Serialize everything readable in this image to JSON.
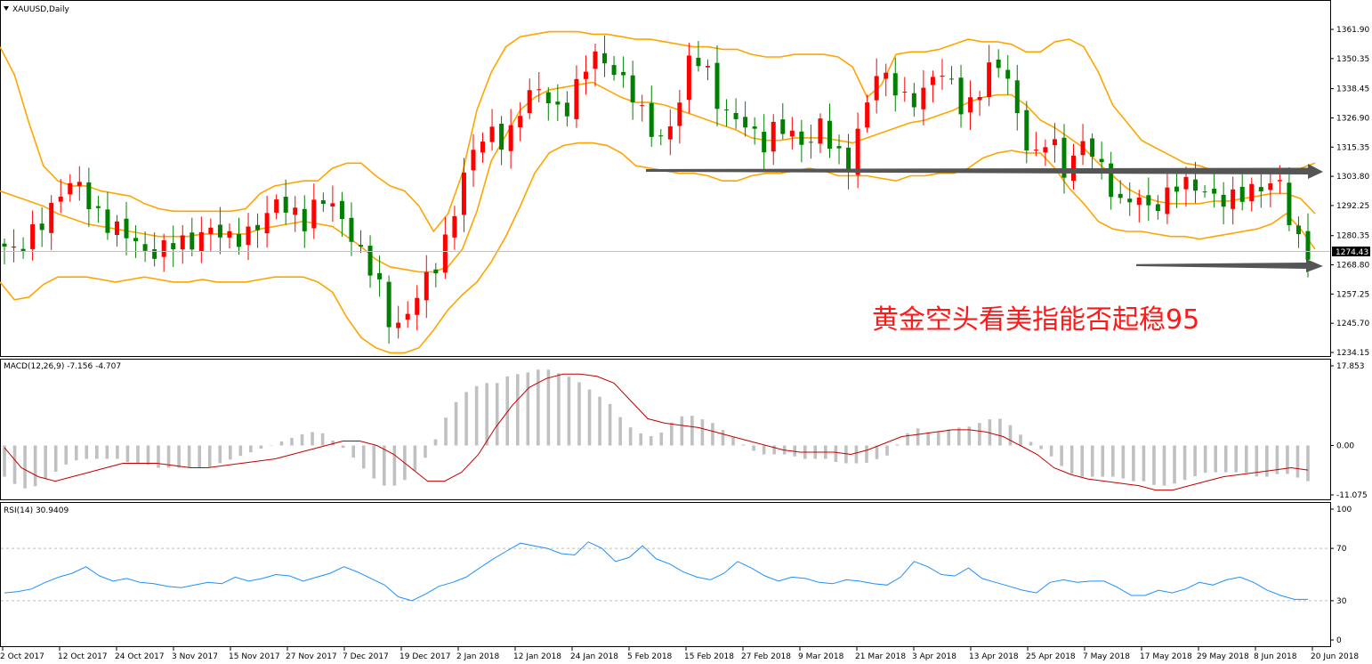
{
  "window": {
    "symbol_label": "XAUUSD,Daily"
  },
  "annotation": {
    "text": "黄金空头看美指能否起稳95"
  },
  "colors": {
    "bull_candle": "#ff0000",
    "bear_candle": "#008000",
    "bollinger": "#ffa500",
    "macd_hist": "#c0c0c0",
    "macd_signal": "#c00000",
    "rsi_line": "#1e90ff",
    "arrow": "#555555",
    "price_badge": "#000000"
  },
  "icons": {
    "menu": "triangle-down-icon"
  },
  "chart_data": [
    {
      "type": "candlestick",
      "panel": "price",
      "title": "XAUUSD,Daily",
      "y_ticks": [
        "1361.90",
        "1350.35",
        "1338.45",
        "1326.90",
        "1315.35",
        "1303.80",
        "1292.25",
        "1280.35",
        "1268.80",
        "1257.25",
        "1245.70",
        "1234.15"
      ],
      "y_range": [
        1234.15,
        1361.9
      ],
      "current_price": "1274.43",
      "x_ticks": [
        "2 Oct 2017",
        "12 Oct 2017",
        "24 Oct 2017",
        "3 Nov 2017",
        "15 Nov 2017",
        "27 Nov 2017",
        "7 Dec 2017",
        "19 Dec 2017",
        "2 Jan 2018",
        "12 Jan 2018",
        "24 Jan 2018",
        "5 Feb 2018",
        "15 Feb 2018",
        "27 Feb 2018",
        "9 Mar 2018",
        "21 Mar 2018",
        "3 Apr 2018",
        "13 Apr 2018",
        "25 Apr 2018",
        "7 May 2018",
        "17 May 2018",
        "29 May 2018",
        "8 Jun 2018",
        "20 Jun 2018"
      ],
      "close_path": [
        1276,
        1274,
        1282,
        1288,
        1298,
        1303,
        1292,
        1285,
        1283,
        1279,
        1272,
        1275,
        1279,
        1276,
        1283,
        1282,
        1278,
        1281,
        1286,
        1294,
        1290,
        1285,
        1296,
        1292,
        1282,
        1272,
        1264,
        1243,
        1247,
        1260,
        1267,
        1281,
        1303,
        1318,
        1321,
        1316,
        1330,
        1340,
        1334,
        1327,
        1340,
        1353,
        1348,
        1343,
        1335,
        1323,
        1317,
        1331,
        1354,
        1346,
        1329,
        1327,
        1323,
        1316,
        1325,
        1320,
        1315,
        1325,
        1313,
        1308,
        1330,
        1346,
        1340,
        1333,
        1335,
        1346,
        1342,
        1328,
        1337,
        1350,
        1344,
        1320,
        1311,
        1322,
        1304,
        1317,
        1314,
        1301,
        1292,
        1297,
        1290,
        1295,
        1302,
        1300,
        1297,
        1294,
        1296,
        1298,
        1300,
        1302,
        1280,
        1274
      ],
      "bollinger_upper_path": [
        1355,
        1344,
        1325,
        1308,
        1302,
        1300,
        1300,
        1298,
        1297,
        1296,
        1293,
        1291,
        1290,
        1290,
        1290,
        1290,
        1290,
        1291,
        1297,
        1300,
        1301,
        1302,
        1302,
        1307,
        1309,
        1309,
        1304,
        1300,
        1298,
        1292,
        1282,
        1289,
        1305,
        1330,
        1345,
        1355,
        1359,
        1360,
        1361,
        1361,
        1361,
        1360,
        1360,
        1359,
        1358,
        1358,
        1357,
        1356,
        1355,
        1355,
        1354,
        1354,
        1352,
        1351,
        1351,
        1352,
        1352,
        1352,
        1351,
        1347,
        1335,
        1340,
        1352,
        1353,
        1353,
        1354,
        1356,
        1358,
        1357,
        1357,
        1356,
        1353,
        1353,
        1357,
        1358,
        1355,
        1345,
        1332,
        1325,
        1318,
        1315,
        1312,
        1309,
        1308,
        1306,
        1306,
        1305,
        1305,
        1305,
        1306,
        1307,
        1309
      ],
      "bollinger_middle_path": [
        1298,
        1296,
        1294,
        1292,
        1289,
        1287,
        1285,
        1284,
        1283,
        1282,
        1281,
        1280,
        1280,
        1280,
        1281,
        1281,
        1281,
        1281,
        1283,
        1284,
        1285,
        1286,
        1285,
        1284,
        1280,
        1276,
        1271,
        1268,
        1267,
        1266,
        1266,
        1268,
        1275,
        1290,
        1310,
        1320,
        1330,
        1335,
        1338,
        1339,
        1340,
        1341,
        1338,
        1335,
        1333,
        1333,
        1332,
        1330,
        1328,
        1326,
        1324,
        1322,
        1319,
        1318,
        1318,
        1319,
        1319,
        1319,
        1318,
        1317,
        1319,
        1321,
        1323,
        1325,
        1326,
        1328,
        1330,
        1333,
        1335,
        1336,
        1336,
        1332,
        1326,
        1323,
        1319,
        1315,
        1309,
        1304,
        1299,
        1296,
        1294,
        1293,
        1293,
        1293,
        1294,
        1294,
        1295,
        1296,
        1297,
        1297,
        1295,
        1289
      ],
      "bollinger_lower_path": [
        1262,
        1255,
        1256,
        1261,
        1264,
        1264,
        1264,
        1263,
        1262,
        1263,
        1264,
        1263,
        1262,
        1262,
        1263,
        1262,
        1262,
        1262,
        1263,
        1264,
        1264,
        1264,
        1262,
        1258,
        1248,
        1240,
        1236,
        1234,
        1234,
        1236,
        1243,
        1251,
        1257,
        1262,
        1270,
        1280,
        1292,
        1305,
        1313,
        1316,
        1317,
        1317,
        1316,
        1313,
        1308,
        1307,
        1306,
        1305,
        1305,
        1304,
        1302,
        1302,
        1304,
        1305,
        1305,
        1306,
        1307,
        1306,
        1304,
        1304,
        1304,
        1303,
        1302,
        1304,
        1304,
        1305,
        1305,
        1307,
        1311,
        1313,
        1314,
        1313,
        1313,
        1307,
        1299,
        1293,
        1286,
        1283,
        1282,
        1282,
        1281,
        1280,
        1280,
        1279,
        1280,
        1281,
        1282,
        1283,
        1285,
        1289,
        1283,
        1275
      ],
      "arrows": [
        {
          "from_price": 1305.5,
          "to_price": 1304.2,
          "label": ""
        },
        {
          "from_price": 1269.0,
          "to_price": 1268.0,
          "label": ""
        }
      ]
    },
    {
      "type": "histogram",
      "panel": "macd",
      "title": "MACD(12,26,9) -7.156 -4.707",
      "y_ticks": [
        "17.853",
        "0.00",
        "-11.075"
      ],
      "y_range": [
        -11.075,
        17.853
      ],
      "histogram_path": [
        -7,
        -9,
        -10,
        -8,
        -6,
        -4,
        -3,
        -3,
        -3,
        -3,
        -4,
        -4,
        -5,
        -5,
        -5,
        -5,
        -5,
        -4,
        -3,
        -2,
        -1,
        0,
        1,
        2,
        3,
        3,
        1,
        -1,
        -4,
        -7,
        -9,
        -9,
        -7,
        -4,
        1,
        7,
        11,
        13,
        14,
        14,
        16,
        16,
        17,
        17,
        16,
        15,
        13,
        11,
        9,
        5,
        3,
        2,
        3,
        6,
        7,
        6,
        5,
        3,
        1,
        -1,
        -2,
        -2,
        -2,
        -3,
        -3,
        -3,
        -4,
        -4,
        -4,
        -3,
        -2,
        2,
        4,
        3,
        3,
        4,
        4,
        5,
        6,
        6,
        3,
        1,
        -1,
        -3,
        -6,
        -7,
        -7,
        -7,
        -7,
        -8,
        -8,
        -9,
        -9,
        -8,
        -7,
        -6,
        -6,
        -6,
        -6,
        -7,
        -7,
        -6,
        -7,
        -8
      ],
      "signal_path": [
        -0.5,
        -5,
        -7,
        -8,
        -7,
        -6,
        -5,
        -4,
        -4,
        -4,
        -4.5,
        -5,
        -5,
        -4.5,
        -4,
        -3.5,
        -3,
        -2,
        -1,
        0,
        1,
        1,
        0,
        -2,
        -5,
        -8,
        -8,
        -6,
        -2,
        4,
        9,
        13,
        15,
        16,
        16,
        15.5,
        14,
        10,
        6,
        5,
        4.5,
        4,
        3,
        2,
        1,
        0,
        -1,
        -1.5,
        -1.5,
        -1.5,
        -2,
        -1,
        0.5,
        2,
        2.5,
        3,
        3.5,
        3.5,
        3,
        2,
        0,
        -2,
        -5,
        -6.5,
        -7.5,
        -8,
        -8.5,
        -9,
        -10,
        -10,
        -9,
        -8,
        -7,
        -6.5,
        -6,
        -5.5,
        -5,
        -5.5
      ],
      "current_values": [
        "-7.156",
        "-4.707"
      ]
    },
    {
      "type": "line",
      "panel": "rsi",
      "title": "RSI(14) 30.9409",
      "y_ticks": [
        "100",
        "70",
        "30",
        "0"
      ],
      "y_range": [
        0,
        100
      ],
      "levels": [
        70,
        30
      ],
      "rsi_path": [
        36,
        37,
        39,
        44,
        48,
        51,
        56,
        49,
        45,
        47,
        44,
        43,
        41,
        40,
        42,
        44,
        43,
        48,
        45,
        47,
        50,
        49,
        45,
        48,
        51,
        56,
        52,
        47,
        42,
        33,
        30,
        35,
        41,
        44,
        48,
        55,
        62,
        68,
        74,
        72,
        70,
        66,
        65,
        75,
        70,
        60,
        63,
        72,
        62,
        58,
        52,
        48,
        46,
        51,
        60,
        55,
        49,
        45,
        48,
        47,
        44,
        43,
        46,
        45,
        43,
        42,
        48,
        60,
        56,
        50,
        49,
        55,
        47,
        44,
        41,
        38,
        36,
        44,
        46,
        44,
        45,
        45,
        40,
        34,
        34,
        38,
        36,
        39,
        44,
        42,
        46,
        48,
        44,
        38,
        34,
        31,
        31
      ]
    }
  ]
}
